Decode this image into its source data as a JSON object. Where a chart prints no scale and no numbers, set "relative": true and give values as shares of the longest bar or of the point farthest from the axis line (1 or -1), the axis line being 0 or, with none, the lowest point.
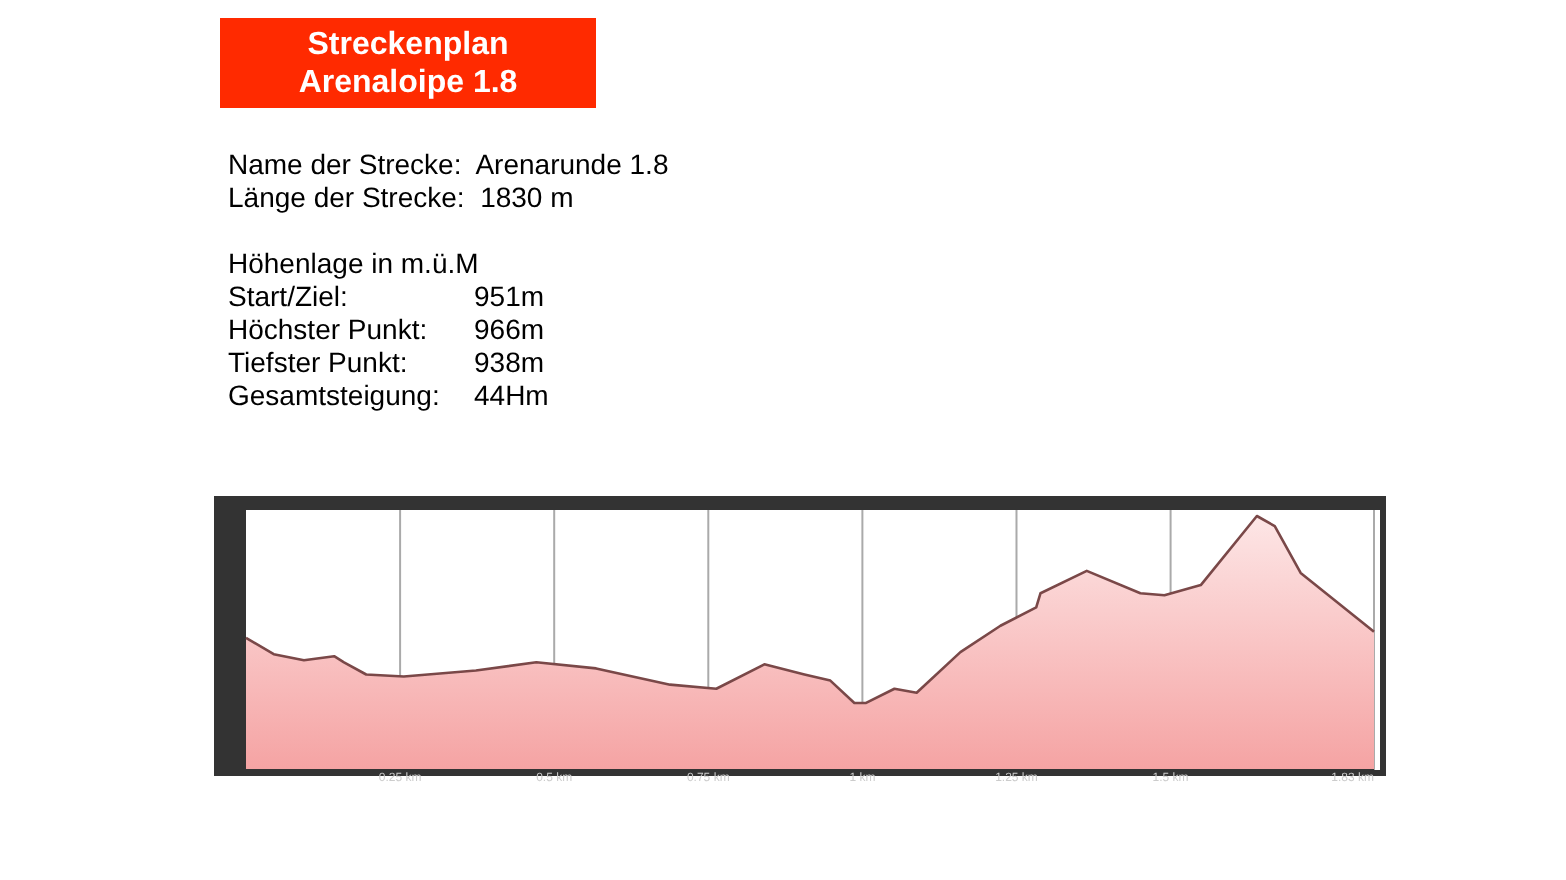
{
  "chart_data": [
    {
      "type": "other",
      "title": "Streckenplan\nArenaloipe 1.8",
      "annotations": [
        "Name der Strecke:  Arenarunde 1.8",
        "Länge der Strecke:  1830 m",
        "Höhenlage in m.ü.M",
        "Start/Ziel:\t951m",
        "Höchster Punkt:\t966m",
        "Tiefster Punkt:\t938m",
        "Gesamtsteigung:\t44Hm"
      ]
    },
    {
      "type": "area",
      "relative": true,
      "grid": "x",
      "xlim": [
        0,
        1.83
      ],
      "xticks": [
        {
          "value": 0.25,
          "label": "0.25 km"
        },
        {
          "value": 0.5,
          "label": "0.5 km"
        },
        {
          "value": 0.75,
          "label": "0.75 km"
        },
        {
          "value": 1,
          "label": "1 km"
        },
        {
          "value": 1.25,
          "label": "1.25 km"
        },
        {
          "value": 1.5,
          "label": "1.5 km"
        },
        {
          "value": 1.83,
          "label": "1.83 km"
        }
      ],
      "x": [
        0,
        0.045,
        0.094,
        0.143,
        0.159,
        0.195,
        0.256,
        0.373,
        0.471,
        0.568,
        0.688,
        0.763,
        0.841,
        0.906,
        0.948,
        0.987,
        1.006,
        1.052,
        1.088,
        1.159,
        1.224,
        1.282,
        1.289,
        1.364,
        1.451,
        1.49,
        1.549,
        1.64,
        1.669,
        1.711,
        1.83
      ],
      "series": [
        {
          "color": "#7a4848",
          "values": [
            0.52,
            0.456,
            0.432,
            0.448,
            0.424,
            0.376,
            0.368,
            0.392,
            0.424,
            0.4,
            0.336,
            0.32,
            0.416,
            0.376,
            0.352,
            0.264,
            0.264,
            0.32,
            0.304,
            0.464,
            0.568,
            0.64,
            0.696,
            0.784,
            0.696,
            0.688,
            0.728,
            1,
            0.96,
            0.776,
            0.544
          ]
        }
      ]
    }
  ]
}
